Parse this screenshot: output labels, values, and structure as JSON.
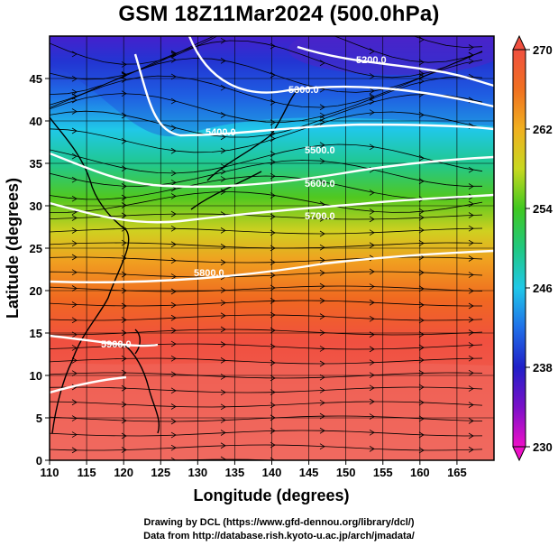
{
  "title": "GSM 18Z11Mar2024 (500.0hPa)",
  "x_axis": {
    "label": "Longitude (degrees)",
    "range": [
      110,
      170
    ],
    "ticks": [
      110,
      115,
      120,
      125,
      130,
      135,
      140,
      145,
      150,
      155,
      160,
      165
    ]
  },
  "y_axis": {
    "label": "Latitude  (degrees)",
    "range": [
      0,
      50
    ],
    "ticks": [
      0,
      5,
      10,
      15,
      20,
      25,
      30,
      35,
      40,
      45
    ]
  },
  "colorbar": {
    "range": [
      230,
      270
    ],
    "ticks": [
      230,
      238,
      246,
      254,
      262,
      270
    ],
    "colors": [
      "#ee10c8",
      "#7a10c8",
      "#2020c8",
      "#2070e8",
      "#20c8e8",
      "#20c880",
      "#40c820",
      "#c8d820",
      "#f0b020",
      "#f07020",
      "#f05040",
      "#f06060"
    ]
  },
  "contours": [
    {
      "label": "5900.0"
    },
    {
      "label": "5800.0"
    },
    {
      "label": "5700.0"
    },
    {
      "label": "5600.0"
    },
    {
      "label": "5500.0"
    },
    {
      "label": "5400.0"
    },
    {
      "label": "5300.0"
    },
    {
      "label": "5200.0"
    }
  ],
  "credits": {
    "line1": "Drawing by DCL (https://www.gfd-dennou.org/library/dcl/)",
    "line2": "Data from http://database.rish.kyoto-u.ac.jp/arch/jmadata/"
  }
}
